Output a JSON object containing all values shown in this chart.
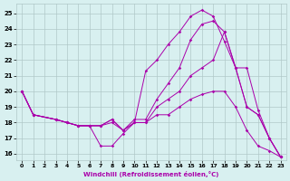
{
  "xlabel": "Windchill (Refroidissement éolien,°C)",
  "bg_color": "#d8f0f0",
  "grid_color": "#b0c8c8",
  "line_color": "#aa00aa",
  "xlim": [
    -0.5,
    23.5
  ],
  "ylim": [
    15.6,
    25.6
  ],
  "yticks": [
    16,
    17,
    18,
    19,
    20,
    21,
    22,
    23,
    24,
    25
  ],
  "xticks": [
    0,
    1,
    2,
    3,
    4,
    5,
    6,
    7,
    8,
    9,
    10,
    11,
    12,
    13,
    14,
    15,
    16,
    17,
    18,
    19,
    20,
    21,
    22,
    23
  ],
  "curve1_x": [
    0,
    1,
    3,
    4,
    5,
    6,
    7,
    8,
    9,
    10,
    11,
    12,
    13,
    14,
    15,
    16,
    17,
    18,
    19,
    20,
    21,
    22,
    23
  ],
  "curve1_y": [
    20.0,
    18.5,
    18.2,
    18.0,
    17.8,
    17.8,
    16.5,
    16.5,
    17.3,
    18.0,
    21.3,
    22.0,
    23.0,
    23.8,
    24.8,
    25.2,
    24.8,
    23.2,
    21.5,
    19.0,
    18.5,
    17.0,
    15.8
  ],
  "curve2_x": [
    0,
    1,
    3,
    4,
    5,
    6,
    7,
    8,
    9,
    10,
    11,
    12,
    13,
    14,
    15,
    16,
    17,
    18,
    19,
    20,
    21,
    22,
    23
  ],
  "curve2_y": [
    20.0,
    18.5,
    18.2,
    18.0,
    17.8,
    17.8,
    17.8,
    18.0,
    17.5,
    18.2,
    18.2,
    19.5,
    20.5,
    21.5,
    23.3,
    24.3,
    24.5,
    23.8,
    21.5,
    19.0,
    18.5,
    17.0,
    15.8
  ],
  "curve3_x": [
    0,
    1,
    3,
    4,
    5,
    6,
    7,
    8,
    9,
    10,
    11,
    12,
    13,
    14,
    15,
    16,
    17,
    18,
    19,
    20,
    21,
    22,
    23
  ],
  "curve3_y": [
    20.0,
    18.5,
    18.2,
    18.0,
    17.8,
    17.8,
    17.8,
    18.2,
    17.5,
    18.0,
    18.0,
    19.0,
    19.5,
    20.0,
    21.0,
    21.5,
    22.0,
    23.8,
    21.5,
    21.5,
    18.8,
    17.0,
    15.8
  ],
  "curve4_x": [
    0,
    1,
    3,
    4,
    5,
    6,
    7,
    8,
    9,
    10,
    11,
    12,
    13,
    14,
    15,
    16,
    17,
    18,
    19,
    20,
    21,
    22,
    23
  ],
  "curve4_y": [
    20.0,
    18.5,
    18.2,
    18.0,
    17.8,
    17.8,
    17.8,
    18.2,
    17.5,
    18.0,
    18.0,
    18.5,
    18.5,
    19.0,
    19.5,
    19.8,
    20.0,
    20.0,
    19.0,
    17.5,
    16.5,
    16.2,
    15.8
  ]
}
